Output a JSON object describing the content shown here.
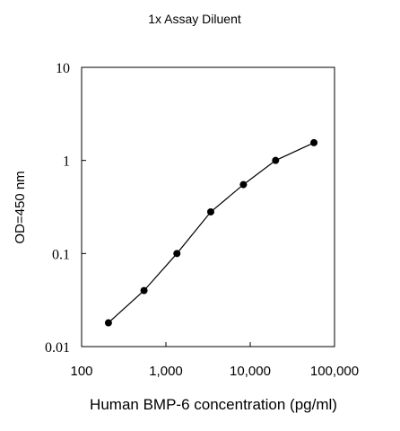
{
  "chart_data": {
    "type": "scatter",
    "title": "1x Assay Diluent",
    "xlabel": "Human BMP-6 concentration (pg/ml)",
    "ylabel": "OD=450 nm",
    "x_scale": "log",
    "y_scale": "log",
    "xlim": [
      100,
      100000
    ],
    "ylim": [
      0.01,
      10
    ],
    "x_ticks": [
      100,
      1000,
      10000,
      100000
    ],
    "x_tick_labels": [
      "100",
      "1,000",
      "10,000",
      "100,000"
    ],
    "y_ticks": [
      0.01,
      0.1,
      1,
      10
    ],
    "y_tick_labels": [
      "0.01",
      "0.1",
      "1",
      "10"
    ],
    "grid": false,
    "legend": "none",
    "series": [
      {
        "x": [
          208,
          550,
          1350,
          3400,
          8300,
          20000,
          57000
        ],
        "y": [
          0.018,
          0.04,
          0.1,
          0.28,
          0.55,
          1.0,
          1.55
        ],
        "line": true,
        "marker": "circle"
      }
    ]
  },
  "colors": {
    "line": "#000000",
    "marker": "#000000",
    "axis": "#000000"
  }
}
